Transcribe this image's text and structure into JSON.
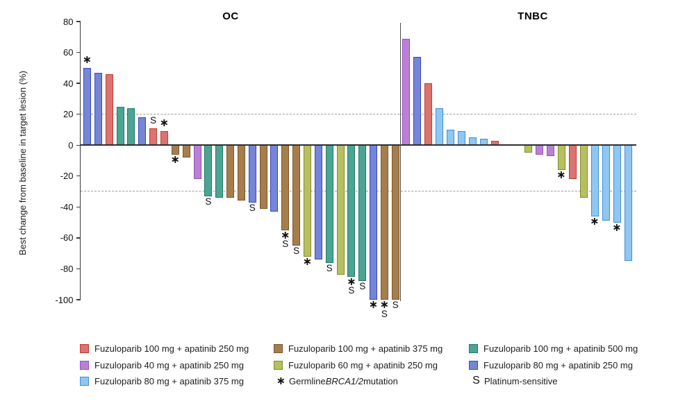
{
  "chart_data": {
    "type": "bar",
    "subtype": "waterfall",
    "ylabel": "Best change from baseline in target lesion (%)",
    "ylim": [
      -100,
      80
    ],
    "yticks": [
      80,
      60,
      40,
      20,
      0,
      -20,
      -40,
      -60,
      -80,
      -100
    ],
    "reference_lines": [
      20,
      -30
    ],
    "grid": "off",
    "groups": {
      "red": {
        "label": "Fuzuloparib 100 mg + apatinib 250 mg",
        "fill": "#DC736E",
        "stroke": "#BE3A31"
      },
      "brown": {
        "label": "Fuzuloparib 100 mg + apatinib 375 mg",
        "fill": "#A67E4E",
        "stroke": "#7A5526"
      },
      "teal": {
        "label": "Fuzuloparib 100 mg + apatinib 500 mg",
        "fill": "#4CA492",
        "stroke": "#1E7A66"
      },
      "purple": {
        "label": "Fuzuloparib 40 mg + apatinib 250 mg",
        "fill": "#BB80D5",
        "stroke": "#9350BC"
      },
      "olive": {
        "label": "Fuzuloparib 60 mg + apatinib 250 mg",
        "fill": "#B6C05F",
        "stroke": "#828A2F"
      },
      "blue": {
        "label": "Fuzuloparib 80 mg + apatinib 250 mg",
        "fill": "#7585D8",
        "stroke": "#3A47BE"
      },
      "lightblue": {
        "label": "Fuzuloparib 80 mg + apatinib 375 mg",
        "fill": "#90C6F2",
        "stroke": "#3E8ED8"
      }
    },
    "marker_meanings": {
      "*": "Germline BRCA1/2 mutation",
      "S": "Platinum-sensitive"
    },
    "panels": [
      {
        "label": "OC",
        "bars": [
          {
            "value": 50,
            "group": "blue",
            "mark": "*"
          },
          {
            "value": 47,
            "group": "blue",
            "mark": ""
          },
          {
            "value": 46,
            "group": "red",
            "mark": ""
          },
          {
            "value": 25,
            "group": "teal",
            "mark": ""
          },
          {
            "value": 24,
            "group": "teal",
            "mark": ""
          },
          {
            "value": 18,
            "group": "blue",
            "mark": ""
          },
          {
            "value": 11,
            "group": "red",
            "mark": "S"
          },
          {
            "value": 9,
            "group": "red",
            "mark": "*"
          },
          {
            "value": -6,
            "group": "brown",
            "mark": "*"
          },
          {
            "value": -8,
            "group": "brown",
            "mark": ""
          },
          {
            "value": -22,
            "group": "purple",
            "mark": ""
          },
          {
            "value": -33,
            "group": "teal",
            "mark": "S"
          },
          {
            "value": -34,
            "group": "teal",
            "mark": ""
          },
          {
            "value": -34,
            "group": "brown",
            "mark": ""
          },
          {
            "value": -36,
            "group": "brown",
            "mark": ""
          },
          {
            "value": -37,
            "group": "blue",
            "mark": "S"
          },
          {
            "value": -41,
            "group": "brown",
            "mark": ""
          },
          {
            "value": -43,
            "group": "blue",
            "mark": ""
          },
          {
            "value": -55,
            "group": "brown",
            "mark": "*S"
          },
          {
            "value": -65,
            "group": "brown",
            "mark": "S"
          },
          {
            "value": -72,
            "group": "olive",
            "mark": "*"
          },
          {
            "value": -74,
            "group": "blue",
            "mark": ""
          },
          {
            "value": -76,
            "group": "teal",
            "mark": "S"
          },
          {
            "value": -84,
            "group": "olive",
            "mark": ""
          },
          {
            "value": -85,
            "group": "teal",
            "mark": "*S"
          },
          {
            "value": -88,
            "group": "teal",
            "mark": "S"
          },
          {
            "value": -100,
            "group": "blue",
            "mark": "*"
          },
          {
            "value": -100,
            "group": "brown",
            "mark": "*S"
          },
          {
            "value": -100,
            "group": "brown",
            "mark": "S"
          }
        ]
      },
      {
        "label": "TNBC",
        "bars": [
          {
            "value": 69,
            "group": "purple",
            "mark": ""
          },
          {
            "value": 57,
            "group": "blue",
            "mark": ""
          },
          {
            "value": 40,
            "group": "red",
            "mark": ""
          },
          {
            "value": 24,
            "group": "lightblue",
            "mark": ""
          },
          {
            "value": 10,
            "group": "lightblue",
            "mark": ""
          },
          {
            "value": 9,
            "group": "lightblue",
            "mark": ""
          },
          {
            "value": 5,
            "group": "lightblue",
            "mark": ""
          },
          {
            "value": 4,
            "group": "lightblue",
            "mark": ""
          },
          {
            "value": 3,
            "group": "red",
            "mark": ""
          },
          {
            "spacer": true
          },
          {
            "spacer": true
          },
          {
            "value": -5,
            "group": "olive",
            "mark": ""
          },
          {
            "value": -6,
            "group": "purple",
            "mark": ""
          },
          {
            "value": -7,
            "group": "purple",
            "mark": ""
          },
          {
            "value": -16,
            "group": "olive",
            "mark": "*"
          },
          {
            "value": -22,
            "group": "red",
            "mark": ""
          },
          {
            "value": -34,
            "group": "olive",
            "mark": ""
          },
          {
            "value": -46,
            "group": "lightblue",
            "mark": "*"
          },
          {
            "value": -49,
            "group": "lightblue",
            "mark": ""
          },
          {
            "value": -50,
            "group": "lightblue",
            "mark": "*"
          },
          {
            "value": -75,
            "group": "lightblue",
            "mark": ""
          }
        ]
      }
    ]
  },
  "legend": {
    "columns": [
      {
        "items": [
          {
            "group": "red"
          },
          {
            "group": "purple"
          },
          {
            "group": "lightblue"
          }
        ]
      },
      {
        "items": [
          {
            "group": "brown"
          },
          {
            "group": "olive"
          },
          {
            "symbol": "*",
            "parts": [
              {
                "t": "Germline ",
                "italic": false
              },
              {
                "t": "BRCA1/2",
                "italic": true
              },
              {
                "t": " mutation",
                "italic": false
              }
            ]
          }
        ]
      },
      {
        "items": [
          {
            "group": "teal"
          },
          {
            "group": "blue"
          },
          {
            "symbol": "S",
            "label": "Platinum-sensitive"
          }
        ]
      }
    ]
  }
}
